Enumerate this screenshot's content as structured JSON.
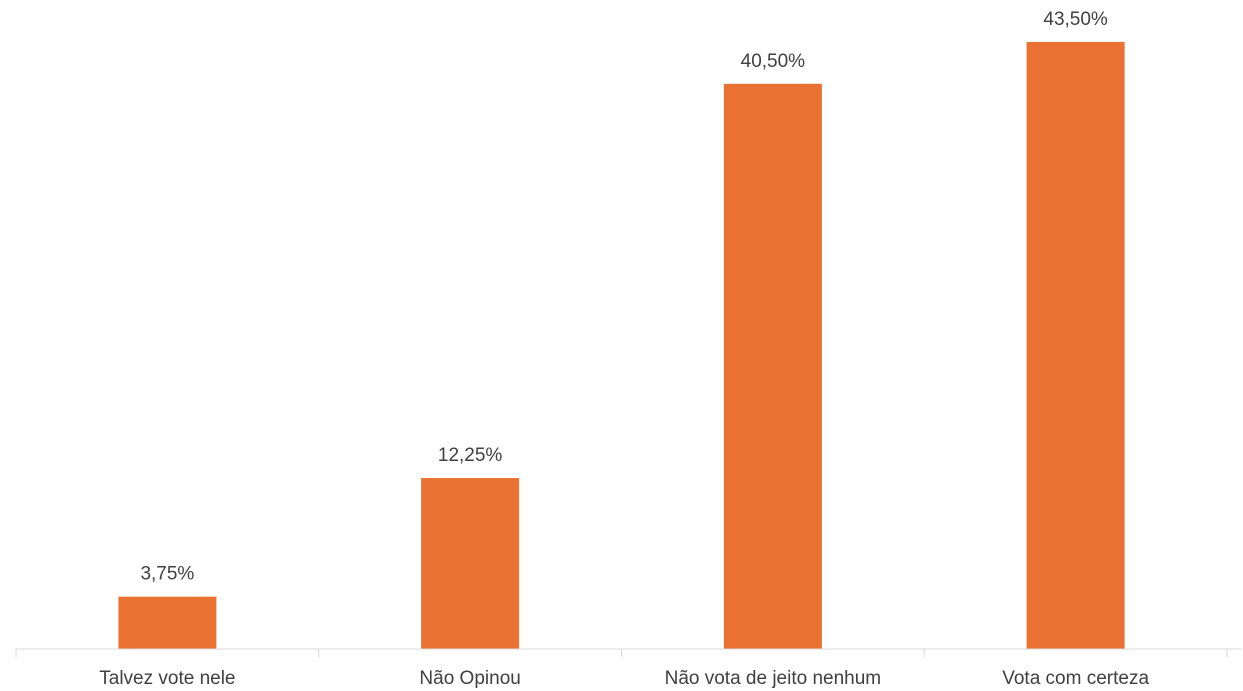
{
  "chart_data": {
    "type": "bar",
    "categories": [
      "Talvez vote nele",
      "Não Opinou",
      "Não vota de jeito nenhum",
      "Vota com certeza"
    ],
    "values": [
      3.75,
      12.25,
      40.5,
      43.5
    ],
    "data_labels": [
      "3,75%",
      "12,25%",
      "40,50%",
      "43,50%"
    ],
    "unit": "%",
    "ylim": [
      0,
      45
    ],
    "grid": false,
    "legend": "none",
    "bar_color": "#E97132"
  }
}
